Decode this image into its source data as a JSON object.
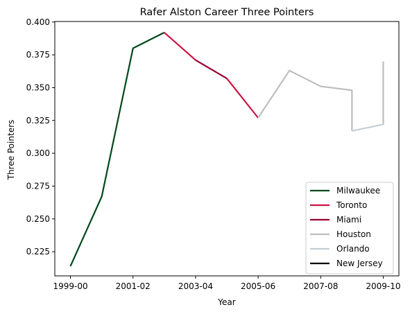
{
  "chart_data": {
    "type": "line",
    "title": "Rafer Alston Career Three Pointers",
    "xlabel": "Year",
    "ylabel": "Three Pointers",
    "x_tick_labels": [
      "1999-00",
      "2001-02",
      "2003-04",
      "2005-06",
      "2007-08",
      "2009-10"
    ],
    "y_tick_labels": [
      "0.225",
      "0.250",
      "0.275",
      "0.300",
      "0.325",
      "0.350",
      "0.375",
      "0.400"
    ],
    "xlim": [
      -0.5,
      10.5
    ],
    "ylim": [
      0.2066,
      0.4004
    ],
    "grid": false,
    "legend_position": "lower-right",
    "series": [
      {
        "name": "Milwaukee",
        "color": "#00471b",
        "points": [
          [
            0,
            0.214
          ],
          [
            1,
            0.267
          ],
          [
            2,
            0.38
          ],
          [
            3,
            0.392
          ]
        ]
      },
      {
        "name": "Toronto",
        "color": "#ce1141",
        "points": [
          [
            3,
            0.392
          ],
          [
            4,
            0.371
          ]
        ]
      },
      {
        "name": "Miami",
        "color": "#98002e",
        "points": [
          [
            4,
            0.371
          ],
          [
            5,
            0.357
          ]
        ]
      },
      {
        "name": "Toronto",
        "color": "#ce1141",
        "points": [
          [
            5,
            0.357
          ],
          [
            6,
            0.327
          ]
        ]
      },
      {
        "name": "Houston",
        "color": "#bdbdbd",
        "points": [
          [
            6,
            0.327
          ],
          [
            7,
            0.363
          ],
          [
            8,
            0.351
          ],
          [
            9,
            0.348
          ],
          [
            9,
            0.317
          ]
        ]
      },
      {
        "name": "Orlando",
        "color": "#c4ced4",
        "points": [
          [
            9,
            0.317
          ],
          [
            10,
            0.322
          ]
        ]
      },
      {
        "name": "Houston",
        "color": "#bdbdbd",
        "points": [
          [
            10,
            0.322
          ],
          [
            10,
            0.37
          ]
        ]
      }
    ],
    "legend": [
      {
        "label": "Milwaukee",
        "color": "#00471b"
      },
      {
        "label": "Toronto",
        "color": "#ce1141"
      },
      {
        "label": "Miami",
        "color": "#98002e"
      },
      {
        "label": "Houston",
        "color": "#bdbdbd"
      },
      {
        "label": "Orlando",
        "color": "#c4ced4"
      },
      {
        "label": "New Jersey",
        "color": "#000000"
      }
    ]
  }
}
